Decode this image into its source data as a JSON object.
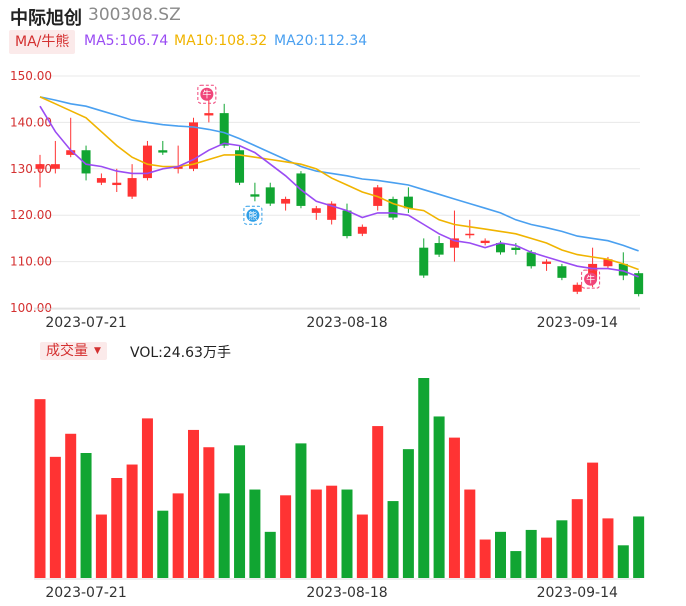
{
  "header": {
    "name": "中际旭创",
    "code": "300308.SZ",
    "ma_tab_label": "MA/牛熊",
    "ma5_text": "MA5:106.74",
    "ma10_text": "MA10:108.32",
    "ma20_text": "MA20:112.34"
  },
  "volume_panel": {
    "tab_label": "成交量",
    "vol_text": "VOL:24.63万手"
  },
  "colors": {
    "up": "#ff3333",
    "down": "#11a532",
    "ma5": "#9a4cf3",
    "ma10": "#f0b400",
    "ma20": "#4aa0f0",
    "grid": "#e8e8e8"
  },
  "chart_data": {
    "type": "candlestick",
    "title": "",
    "price_axis": {
      "ylim": [
        100,
        150
      ],
      "ticks": [
        "150.00",
        "140.00",
        "130.00",
        "120.00",
        "110.00",
        "100.00"
      ]
    },
    "x_ticks": [
      {
        "index": 3,
        "label": "2023-07-21"
      },
      {
        "index": 20,
        "label": "2023-08-18"
      },
      {
        "index": 35,
        "label": "2023-09-14"
      }
    ],
    "candles": [
      {
        "o": 130.0,
        "c": 131.0,
        "h": 133.0,
        "l": 126.0
      },
      {
        "o": 130.0,
        "c": 131.0,
        "h": 136.0,
        "l": 129.0
      },
      {
        "o": 133.0,
        "c": 134.0,
        "h": 141.0,
        "l": 132.5
      },
      {
        "o": 134.0,
        "c": 129.0,
        "h": 135.0,
        "l": 127.5
      },
      {
        "o": 127.0,
        "c": 128.0,
        "h": 129.0,
        "l": 126.5
      },
      {
        "o": 126.5,
        "c": 127.0,
        "h": 130.0,
        "l": 125.0
      },
      {
        "o": 124.0,
        "c": 128.0,
        "h": 131.0,
        "l": 123.5
      },
      {
        "o": 128.0,
        "c": 135.0,
        "h": 136.0,
        "l": 127.5
      },
      {
        "o": 134.0,
        "c": 133.5,
        "h": 136.0,
        "l": 133.0
      },
      {
        "o": 130.0,
        "c": 130.5,
        "h": 135.0,
        "l": 129.0
      },
      {
        "o": 130.0,
        "c": 140.0,
        "h": 141.0,
        "l": 129.5
      },
      {
        "o": 141.5,
        "c": 142.0,
        "h": 146.5,
        "l": 140.0
      },
      {
        "o": 142.0,
        "c": 135.0,
        "h": 144.0,
        "l": 134.5
      },
      {
        "o": 134.0,
        "c": 127.0,
        "h": 135.0,
        "l": 126.5
      },
      {
        "o": 124.5,
        "c": 124.0,
        "h": 127.0,
        "l": 123.0
      },
      {
        "o": 126.0,
        "c": 122.5,
        "h": 127.0,
        "l": 122.0
      },
      {
        "o": 122.5,
        "c": 123.5,
        "h": 124.0,
        "l": 121.0
      },
      {
        "o": 129.0,
        "c": 122.0,
        "h": 129.5,
        "l": 121.5
      },
      {
        "o": 120.5,
        "c": 121.5,
        "h": 122.0,
        "l": 119.0
      },
      {
        "o": 119.0,
        "c": 122.5,
        "h": 123.0,
        "l": 118.0
      },
      {
        "o": 121.0,
        "c": 115.5,
        "h": 122.5,
        "l": 115.0
      },
      {
        "o": 116.0,
        "c": 117.5,
        "h": 118.0,
        "l": 115.5
      },
      {
        "o": 122.0,
        "c": 126.0,
        "h": 126.5,
        "l": 121.0
      },
      {
        "o": 123.5,
        "c": 119.5,
        "h": 124.0,
        "l": 119.0
      },
      {
        "o": 124.0,
        "c": 121.5,
        "h": 126.0,
        "l": 120.5
      },
      {
        "o": 113.0,
        "c": 107.0,
        "h": 115.0,
        "l": 106.5
      },
      {
        "o": 114.0,
        "c": 111.5,
        "h": 115.5,
        "l": 111.0
      },
      {
        "o": 113.0,
        "c": 115.0,
        "h": 121.0,
        "l": 110.0
      },
      {
        "o": 116.0,
        "c": 116.0,
        "h": 119.0,
        "l": 115.0
      },
      {
        "o": 114.0,
        "c": 114.5,
        "h": 115.0,
        "l": 113.5
      },
      {
        "o": 114.0,
        "c": 112.0,
        "h": 114.5,
        "l": 111.5
      },
      {
        "o": 113.0,
        "c": 112.5,
        "h": 114.0,
        "l": 111.5
      },
      {
        "o": 112.0,
        "c": 109.0,
        "h": 112.5,
        "l": 108.5
      },
      {
        "o": 109.5,
        "c": 110.0,
        "h": 110.5,
        "l": 108.0
      },
      {
        "o": 109.0,
        "c": 106.5,
        "h": 109.5,
        "l": 106.0
      },
      {
        "o": 103.5,
        "c": 105.0,
        "h": 105.5,
        "l": 103.0
      },
      {
        "o": 106.5,
        "c": 109.5,
        "h": 113.0,
        "l": 104.5
      },
      {
        "o": 109.0,
        "c": 110.5,
        "h": 111.0,
        "l": 108.5
      },
      {
        "o": 109.5,
        "c": 107.0,
        "h": 112.0,
        "l": 106.0
      },
      {
        "o": 107.5,
        "c": 103.0,
        "h": 108.0,
        "l": 102.5
      }
    ],
    "ma5": [
      143.5,
      138.0,
      134.0,
      131.0,
      130.5,
      129.5,
      129.0,
      129.0,
      130.0,
      130.5,
      132.0,
      134.0,
      135.5,
      135.0,
      133.5,
      131.0,
      128.5,
      125.5,
      123.0,
      122.0,
      121.0,
      119.5,
      120.5,
      120.5,
      120.0,
      118.0,
      116.0,
      114.5,
      114.0,
      113.0,
      114.0,
      113.5,
      112.0,
      111.0,
      110.0,
      109.0,
      108.5,
      108.5,
      108.0,
      106.7
    ],
    "ma10": [
      145.5,
      144.0,
      142.5,
      141.0,
      138.0,
      135.0,
      132.5,
      131.0,
      130.5,
      130.5,
      131.0,
      132.0,
      133.0,
      133.0,
      132.5,
      132.0,
      131.5,
      131.0,
      130.0,
      128.0,
      126.5,
      125.0,
      124.0,
      122.5,
      121.5,
      121.0,
      119.0,
      118.0,
      117.5,
      117.0,
      116.5,
      116.0,
      115.0,
      114.0,
      112.5,
      111.5,
      111.0,
      110.5,
      109.5,
      108.3
    ],
    "ma20": [
      145.5,
      144.8,
      144.0,
      143.5,
      142.5,
      141.5,
      140.5,
      140.0,
      139.5,
      139.2,
      139.0,
      138.5,
      137.8,
      136.5,
      135.0,
      133.5,
      132.0,
      130.5,
      129.5,
      129.0,
      128.5,
      127.8,
      127.5,
      127.0,
      126.5,
      125.5,
      124.5,
      123.5,
      122.5,
      121.5,
      120.5,
      119.0,
      118.0,
      117.3,
      116.5,
      115.5,
      115.0,
      114.5,
      113.5,
      112.3
    ],
    "volume": {
      "ylim": [
        0,
        100
      ],
      "values": [
        93,
        63,
        75,
        65,
        33,
        52,
        59,
        83,
        35,
        44,
        77,
        68,
        44,
        69,
        46,
        24,
        43,
        70,
        46,
        48,
        46,
        33,
        79,
        40,
        67,
        104,
        84,
        73,
        46,
        20,
        24,
        14,
        25,
        21,
        30,
        41,
        60,
        31,
        17,
        32
      ]
    },
    "markers": [
      {
        "index": 11,
        "type": "bull",
        "glyph": "牛"
      },
      {
        "index": 14,
        "type": "bear",
        "glyph": "熊"
      },
      {
        "index": 36,
        "type": "bull",
        "glyph": "牛"
      }
    ]
  }
}
